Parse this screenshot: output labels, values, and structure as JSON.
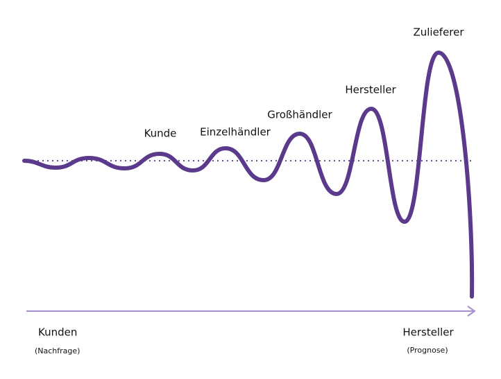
{
  "stages": [
    {
      "label": "Kunde"
    },
    {
      "label": "Einzelhändler"
    },
    {
      "label": "Großhändler"
    },
    {
      "label": "Hersteller"
    },
    {
      "label": "Zulieferer"
    }
  ],
  "axis": {
    "start": {
      "label": "Kunden",
      "note": "(Nachfrage)"
    },
    "end": {
      "label": "Hersteller",
      "note": "(Prognose)"
    }
  }
}
